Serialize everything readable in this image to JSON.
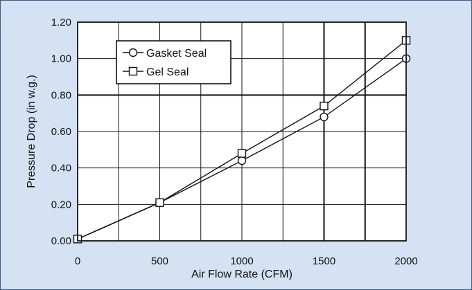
{
  "chart_data": {
    "type": "line",
    "title": "",
    "xlabel": "Air Flow Rate (CFM)",
    "ylabel": "Pressure Drop (in w.g.)",
    "xlim": [
      0,
      2000
    ],
    "ylim": [
      0,
      1.2
    ],
    "x_ticks": [
      "0",
      "500",
      "1000",
      "1500",
      "2000"
    ],
    "y_ticks": [
      "0.00",
      "0.20",
      "0.40",
      "0.60",
      "0.80",
      "1.00",
      "1.20"
    ],
    "grid": true,
    "legend_position": "top-left",
    "series": [
      {
        "name": "Gasket Seal",
        "marker": "circle",
        "x": [
          0,
          500,
          1000,
          1500,
          2000
        ],
        "y": [
          0.01,
          0.21,
          0.44,
          0.68,
          1.0
        ]
      },
      {
        "name": "Gel Seal",
        "marker": "square",
        "x": [
          0,
          500,
          1000,
          1500,
          2000
        ],
        "y": [
          0.01,
          0.21,
          0.48,
          0.74,
          1.1
        ]
      }
    ],
    "colors": {
      "background": "#d4e2f3",
      "plot_background": "#ffffff",
      "line": "#111111"
    }
  }
}
